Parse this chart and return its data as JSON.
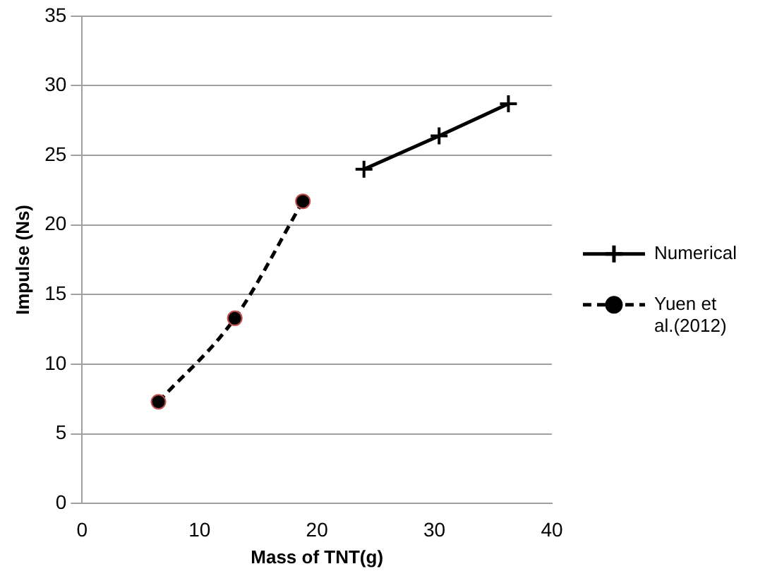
{
  "chart_data": {
    "type": "line",
    "xlabel": "Mass of TNT(g)",
    "ylabel": "Impulse (Ns)",
    "xlim": [
      0,
      40
    ],
    "xticks": [
      0,
      10,
      20,
      30,
      40
    ],
    "ylim": [
      0,
      35
    ],
    "yticks": [
      0,
      5,
      10,
      15,
      20,
      25,
      30,
      35
    ],
    "grid": "y",
    "legend": "right",
    "series": [
      {
        "name": "Numerical",
        "color": "#000000",
        "marker": "cross",
        "line_style": "solid",
        "x": [
          24,
          30.4,
          36.3
        ],
        "values": [
          24,
          26.4,
          28.7
        ]
      },
      {
        "name": "Yuen et al.(2012)",
        "color": "#000000",
        "marker": "circle",
        "line_style": "dashed",
        "x": [
          6.5,
          13,
          18.8
        ],
        "values": [
          7.3,
          13.3,
          21.7
        ]
      }
    ]
  }
}
